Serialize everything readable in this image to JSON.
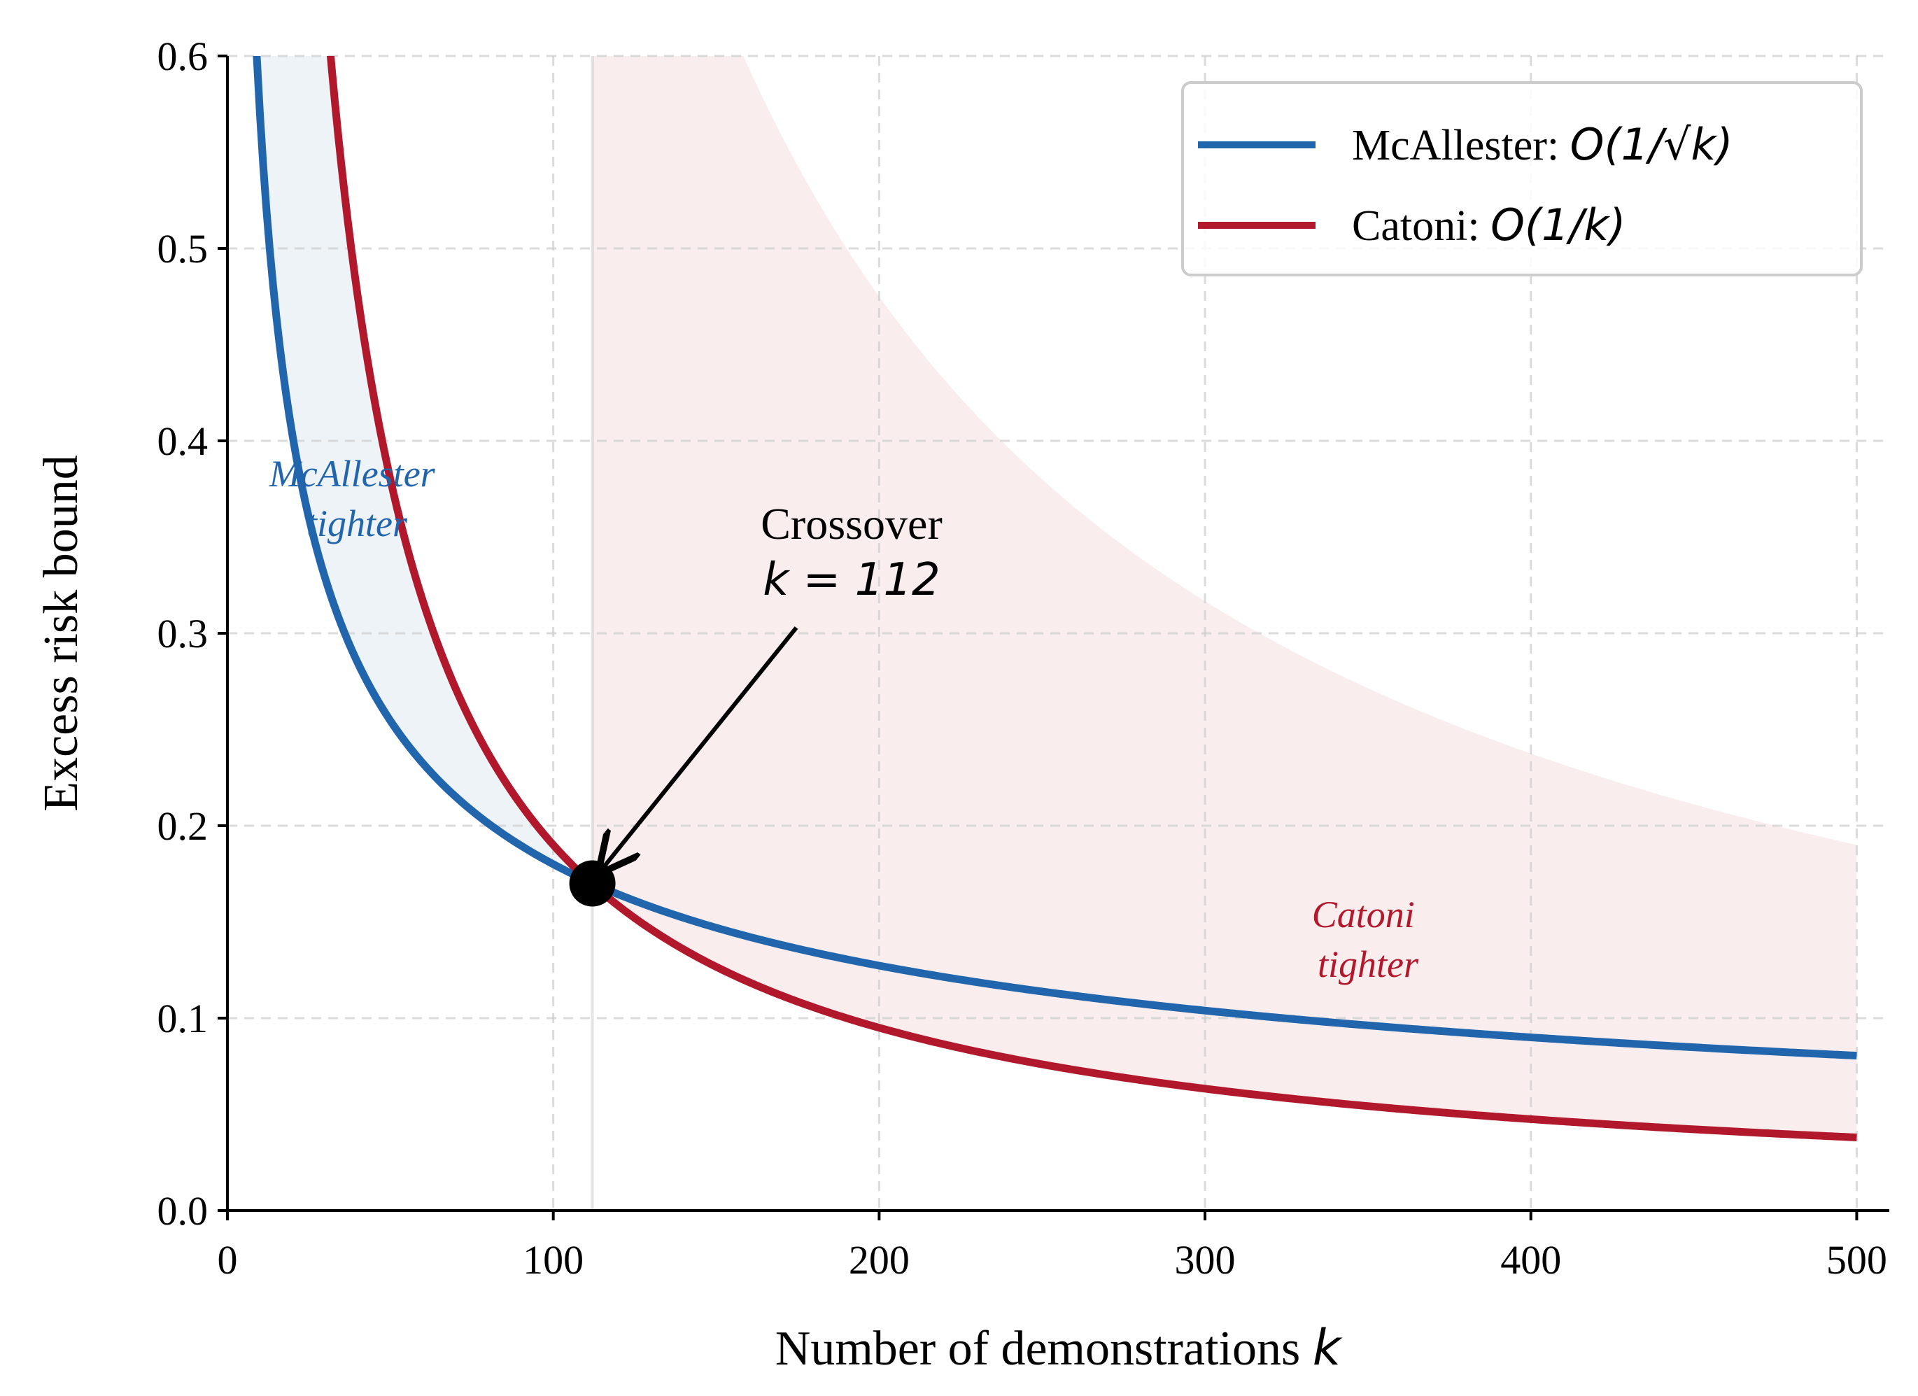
{
  "chart_data": {
    "type": "line",
    "xlabel": "Number of demonstrations",
    "xlabel_var": "k",
    "ylabel": "Excess risk bound",
    "xlim": [
      0,
      510
    ],
    "ylim": [
      0.0,
      0.6
    ],
    "x_ticks": [
      "0",
      "100",
      "200",
      "300",
      "400",
      "500"
    ],
    "y_ticks": [
      "0.0",
      "0.1",
      "0.2",
      "0.3",
      "0.4",
      "0.5",
      "0.6"
    ],
    "grid": true,
    "legend_position": "top-right",
    "series": [
      {
        "name": "McAllester:",
        "name_math": "O(1/√k)",
        "color": "#2166ac",
        "formula": "1.8 / sqrt(k)",
        "x": [
          10,
          20,
          30,
          50,
          75,
          100,
          112,
          150,
          200,
          250,
          300,
          350,
          400,
          450,
          500
        ],
        "y": [
          0.569,
          0.402,
          0.329,
          0.255,
          0.208,
          0.18,
          0.17,
          0.147,
          0.127,
          0.114,
          0.104,
          0.096,
          0.09,
          0.085,
          0.08
        ]
      },
      {
        "name": "Catoni:",
        "name_math": "O(1/k)",
        "color": "#b2182b",
        "formula": "19 / k",
        "x": [
          30,
          50,
          75,
          100,
          112,
          150,
          200,
          250,
          300,
          350,
          400,
          450,
          500
        ],
        "y": [
          0.633,
          0.38,
          0.253,
          0.19,
          0.17,
          0.127,
          0.095,
          0.076,
          0.063,
          0.054,
          0.048,
          0.042,
          0.038
        ]
      }
    ],
    "crossover": {
      "x": 112,
      "y": 0.17,
      "label": "Crossover",
      "label_math": "k = 112"
    },
    "regions": [
      {
        "label_line1": "McAllester",
        "label_line2": "tighter",
        "color": "#2166ac",
        "x_range": [
          0,
          112
        ]
      },
      {
        "label_line1": "Catoni",
        "label_line2": "tighter",
        "color": "#b2182b",
        "x_range": [
          112,
          500
        ]
      }
    ]
  }
}
